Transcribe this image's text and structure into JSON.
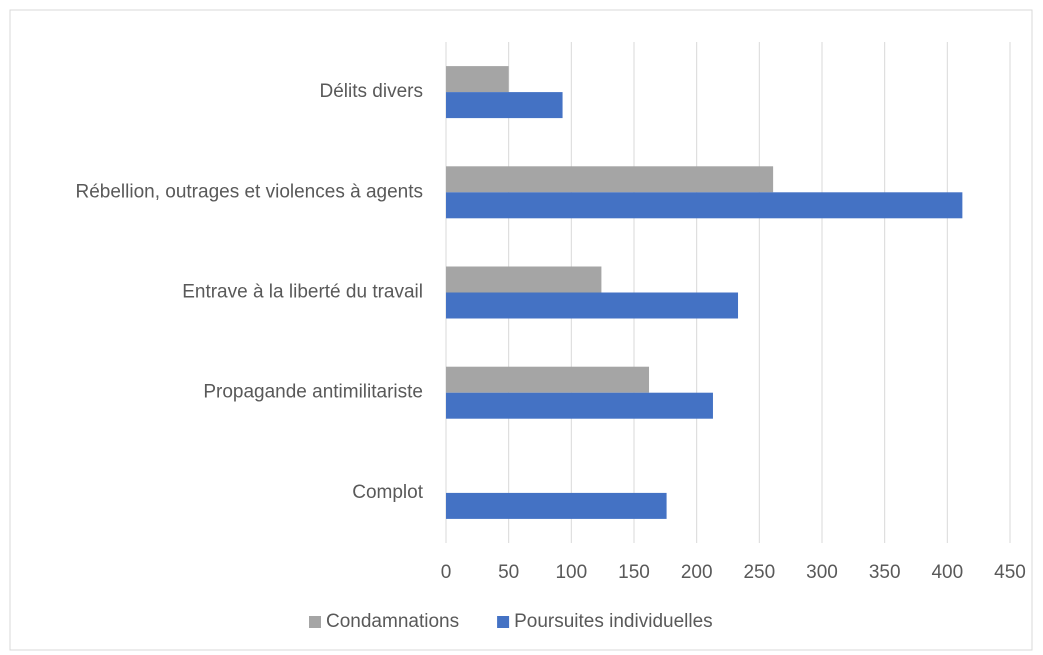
{
  "chart_data": {
    "type": "bar",
    "orientation": "horizontal",
    "categories": [
      "Délits divers",
      "Rébellion, outrages et violences à agents",
      "Entrave à la liberté du travail",
      "Propagande antimilitariste",
      "Complot"
    ],
    "series": [
      {
        "name": "Condamnations",
        "color": "#a5a5a5",
        "values": [
          50,
          261,
          124,
          162,
          0
        ]
      },
      {
        "name": "Poursuites individuelles",
        "color": "#4472c4",
        "values": [
          93,
          412,
          233,
          213,
          176
        ]
      }
    ],
    "xlim": [
      0,
      450
    ],
    "xticks": [
      0,
      50,
      100,
      150,
      200,
      250,
      300,
      350,
      400,
      450
    ],
    "grid": true,
    "legend": "bottom"
  }
}
